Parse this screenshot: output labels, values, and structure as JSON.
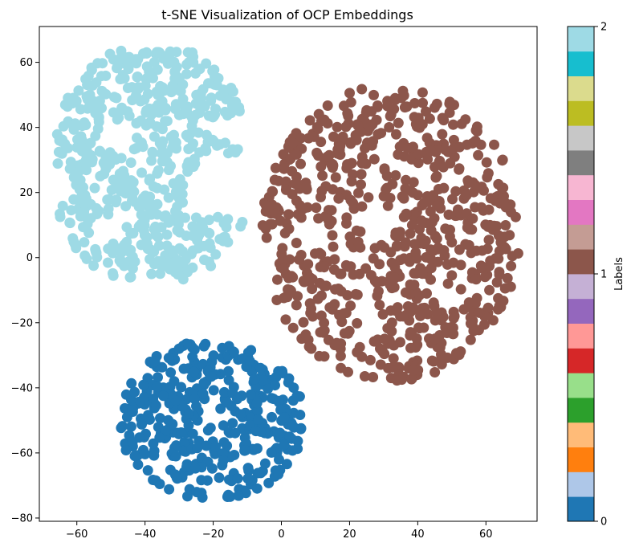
{
  "chart_data": {
    "type": "scatter",
    "title": "t-SNE Visualization of OCP Embeddings",
    "xlabel": "",
    "ylabel": "",
    "xlim": [
      -71,
      75
    ],
    "ylim": [
      -81,
      71
    ],
    "xticks": [
      -60,
      -40,
      -20,
      0,
      20,
      40,
      60
    ],
    "yticks": [
      -80,
      -60,
      -40,
      -20,
      0,
      20,
      40,
      60
    ],
    "grid": false,
    "legend": "none",
    "marker": "circle",
    "clusters": [
      {
        "label": 0,
        "color": "#1f77b4",
        "center": [
          -18,
          -50
        ],
        "x_range": [
          -47,
          6
        ],
        "y_range": [
          -74,
          -26
        ],
        "approx_points": 1100
      },
      {
        "label": 1,
        "color": "#8c564b",
        "center": [
          37,
          8
        ],
        "x_range": [
          -6,
          70
        ],
        "y_range": [
          -38,
          53
        ],
        "approx_points": 2200
      },
      {
        "label": 2,
        "color": "#9edae5",
        "center": [
          -33,
          25
        ],
        "x_range": [
          -66,
          -10
        ],
        "y_range": [
          -7,
          64
        ],
        "approx_points": 1700
      }
    ],
    "colorbar": {
      "label": "Labels",
      "range": [
        0,
        2
      ],
      "ticks": [
        0,
        1,
        2
      ],
      "tick_labels": [
        "0",
        "1",
        "2"
      ],
      "colormap": "tab20",
      "colors": [
        "#1f77b4",
        "#aec7e8",
        "#ff7f0e",
        "#ffbb78",
        "#2ca02c",
        "#98df8a",
        "#d62728",
        "#ff9896",
        "#9467bd",
        "#c5b0d5",
        "#8c564b",
        "#c49c94",
        "#e377c2",
        "#f7b6d2",
        "#7f7f7f",
        "#c7c7c7",
        "#bcbd22",
        "#dbdb8d",
        "#17becf",
        "#9edae5"
      ]
    }
  }
}
